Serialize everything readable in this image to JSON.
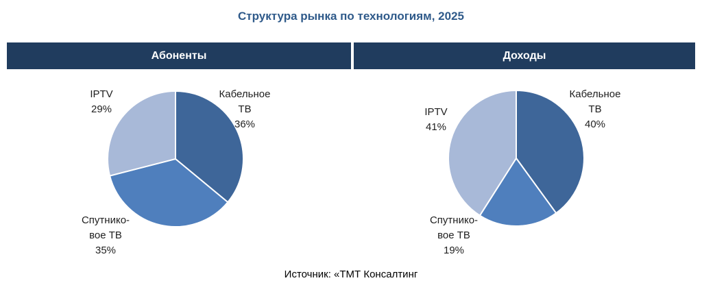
{
  "page": {
    "title": "Структура рынка по технологиям, 2025",
    "source": "Источник: «ТМТ Консалтинг"
  },
  "colors": {
    "header_bg": "#203c5e",
    "title": "#2f5a8a",
    "cable": "#3e6699",
    "satellite": "#4f7fbd",
    "iptv": "#a8b9d8"
  },
  "chart_data": [
    {
      "type": "pie",
      "title": "Абоненты",
      "slices": [
        {
          "name": "Кабельное ТВ",
          "label_lines": [
            "Кабельное",
            "ТВ",
            "36%"
          ],
          "value": 36,
          "color": "#3e6699"
        },
        {
          "name": "Спутниковое ТВ",
          "label_lines": [
            "Спутнико-",
            "вое ТВ",
            "35%"
          ],
          "value": 35,
          "color": "#4f7fbd"
        },
        {
          "name": "IPTV",
          "label_lines": [
            "IPTV",
            "29%"
          ],
          "value": 29,
          "color": "#a8b9d8"
        }
      ]
    },
    {
      "type": "pie",
      "title": "Доходы",
      "slices": [
        {
          "name": "Кабельное ТВ",
          "label_lines": [
            "Кабельное",
            "ТВ",
            "40%"
          ],
          "value": 40,
          "color": "#3e6699"
        },
        {
          "name": "Спутниковое ТВ",
          "label_lines": [
            "Спутнико-",
            "вое ТВ",
            "19%"
          ],
          "value": 19,
          "color": "#4f7fbd"
        },
        {
          "name": "IPTV",
          "label_lines": [
            "IPTV",
            "41%"
          ],
          "value": 41,
          "color": "#a8b9d8"
        }
      ]
    }
  ]
}
